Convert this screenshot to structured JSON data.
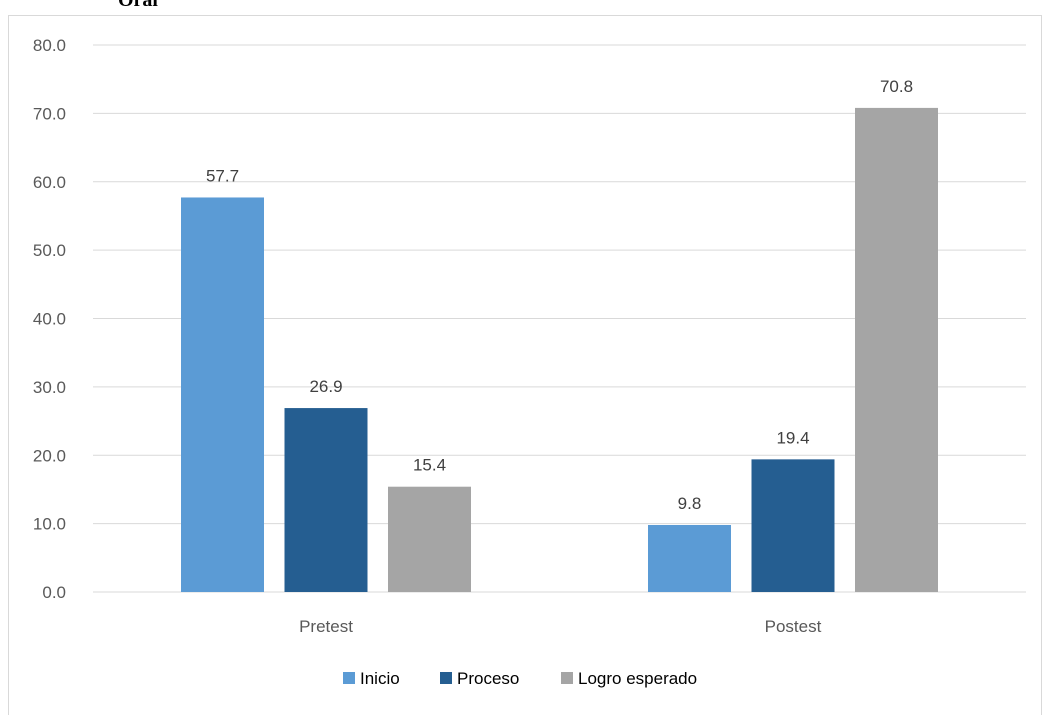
{
  "chart_data": {
    "type": "bar",
    "title": "Oral",
    "categories": [
      "Pretest",
      "Postest"
    ],
    "series": [
      {
        "name": "Inicio",
        "values": [
          57.7,
          9.8
        ],
        "color": "#5b9bd5"
      },
      {
        "name": "Proceso",
        "values": [
          26.9,
          19.4
        ],
        "color": "#255e91"
      },
      {
        "name": "Logro esperado",
        "values": [
          15.4,
          70.8
        ],
        "color": "#a5a5a5"
      }
    ],
    "yticks": [
      "0.0",
      "10.0",
      "20.0",
      "30.0",
      "40.0",
      "50.0",
      "60.0",
      "70.0",
      "80.0"
    ],
    "ylim": [
      0,
      80
    ],
    "grid": true,
    "legend_position": "bottom",
    "data_labels": [
      [
        "57.7",
        "9.8"
      ],
      [
        "26.9",
        "19.4"
      ],
      [
        "15.4",
        "70.8"
      ]
    ]
  }
}
